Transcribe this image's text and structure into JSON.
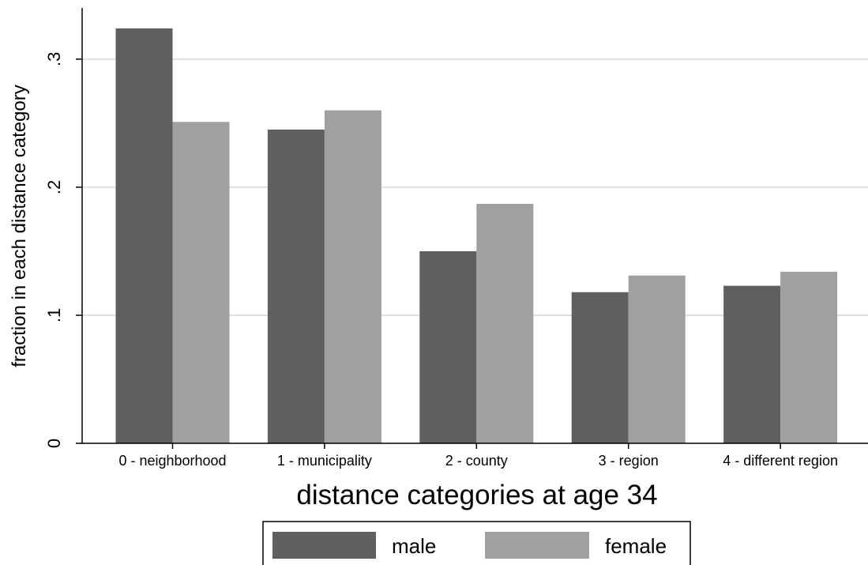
{
  "chart_data": {
    "type": "bar",
    "title": "",
    "xlabel": "distance categories at age 34",
    "ylabel": "fraction in each distance category",
    "categories": [
      "0 - neighborhood",
      "1 - municipality",
      "2 - county",
      "3 - region",
      "4 - different region"
    ],
    "series": [
      {
        "name": "male",
        "values": [
          0.324,
          0.245,
          0.15,
          0.118,
          0.123
        ],
        "color": "#5f5f5f"
      },
      {
        "name": "female",
        "values": [
          0.251,
          0.26,
          0.187,
          0.131,
          0.134
        ],
        "color": "#a0a0a0"
      }
    ],
    "ylim": [
      0,
      0.34
    ],
    "yticks": [
      0,
      0.1,
      0.2,
      0.3
    ],
    "ytick_labels": [
      "0",
      ".1",
      ".2",
      ".3"
    ],
    "grid": true,
    "gridline_color": "#e0e0e0",
    "legend_position": "bottom"
  }
}
